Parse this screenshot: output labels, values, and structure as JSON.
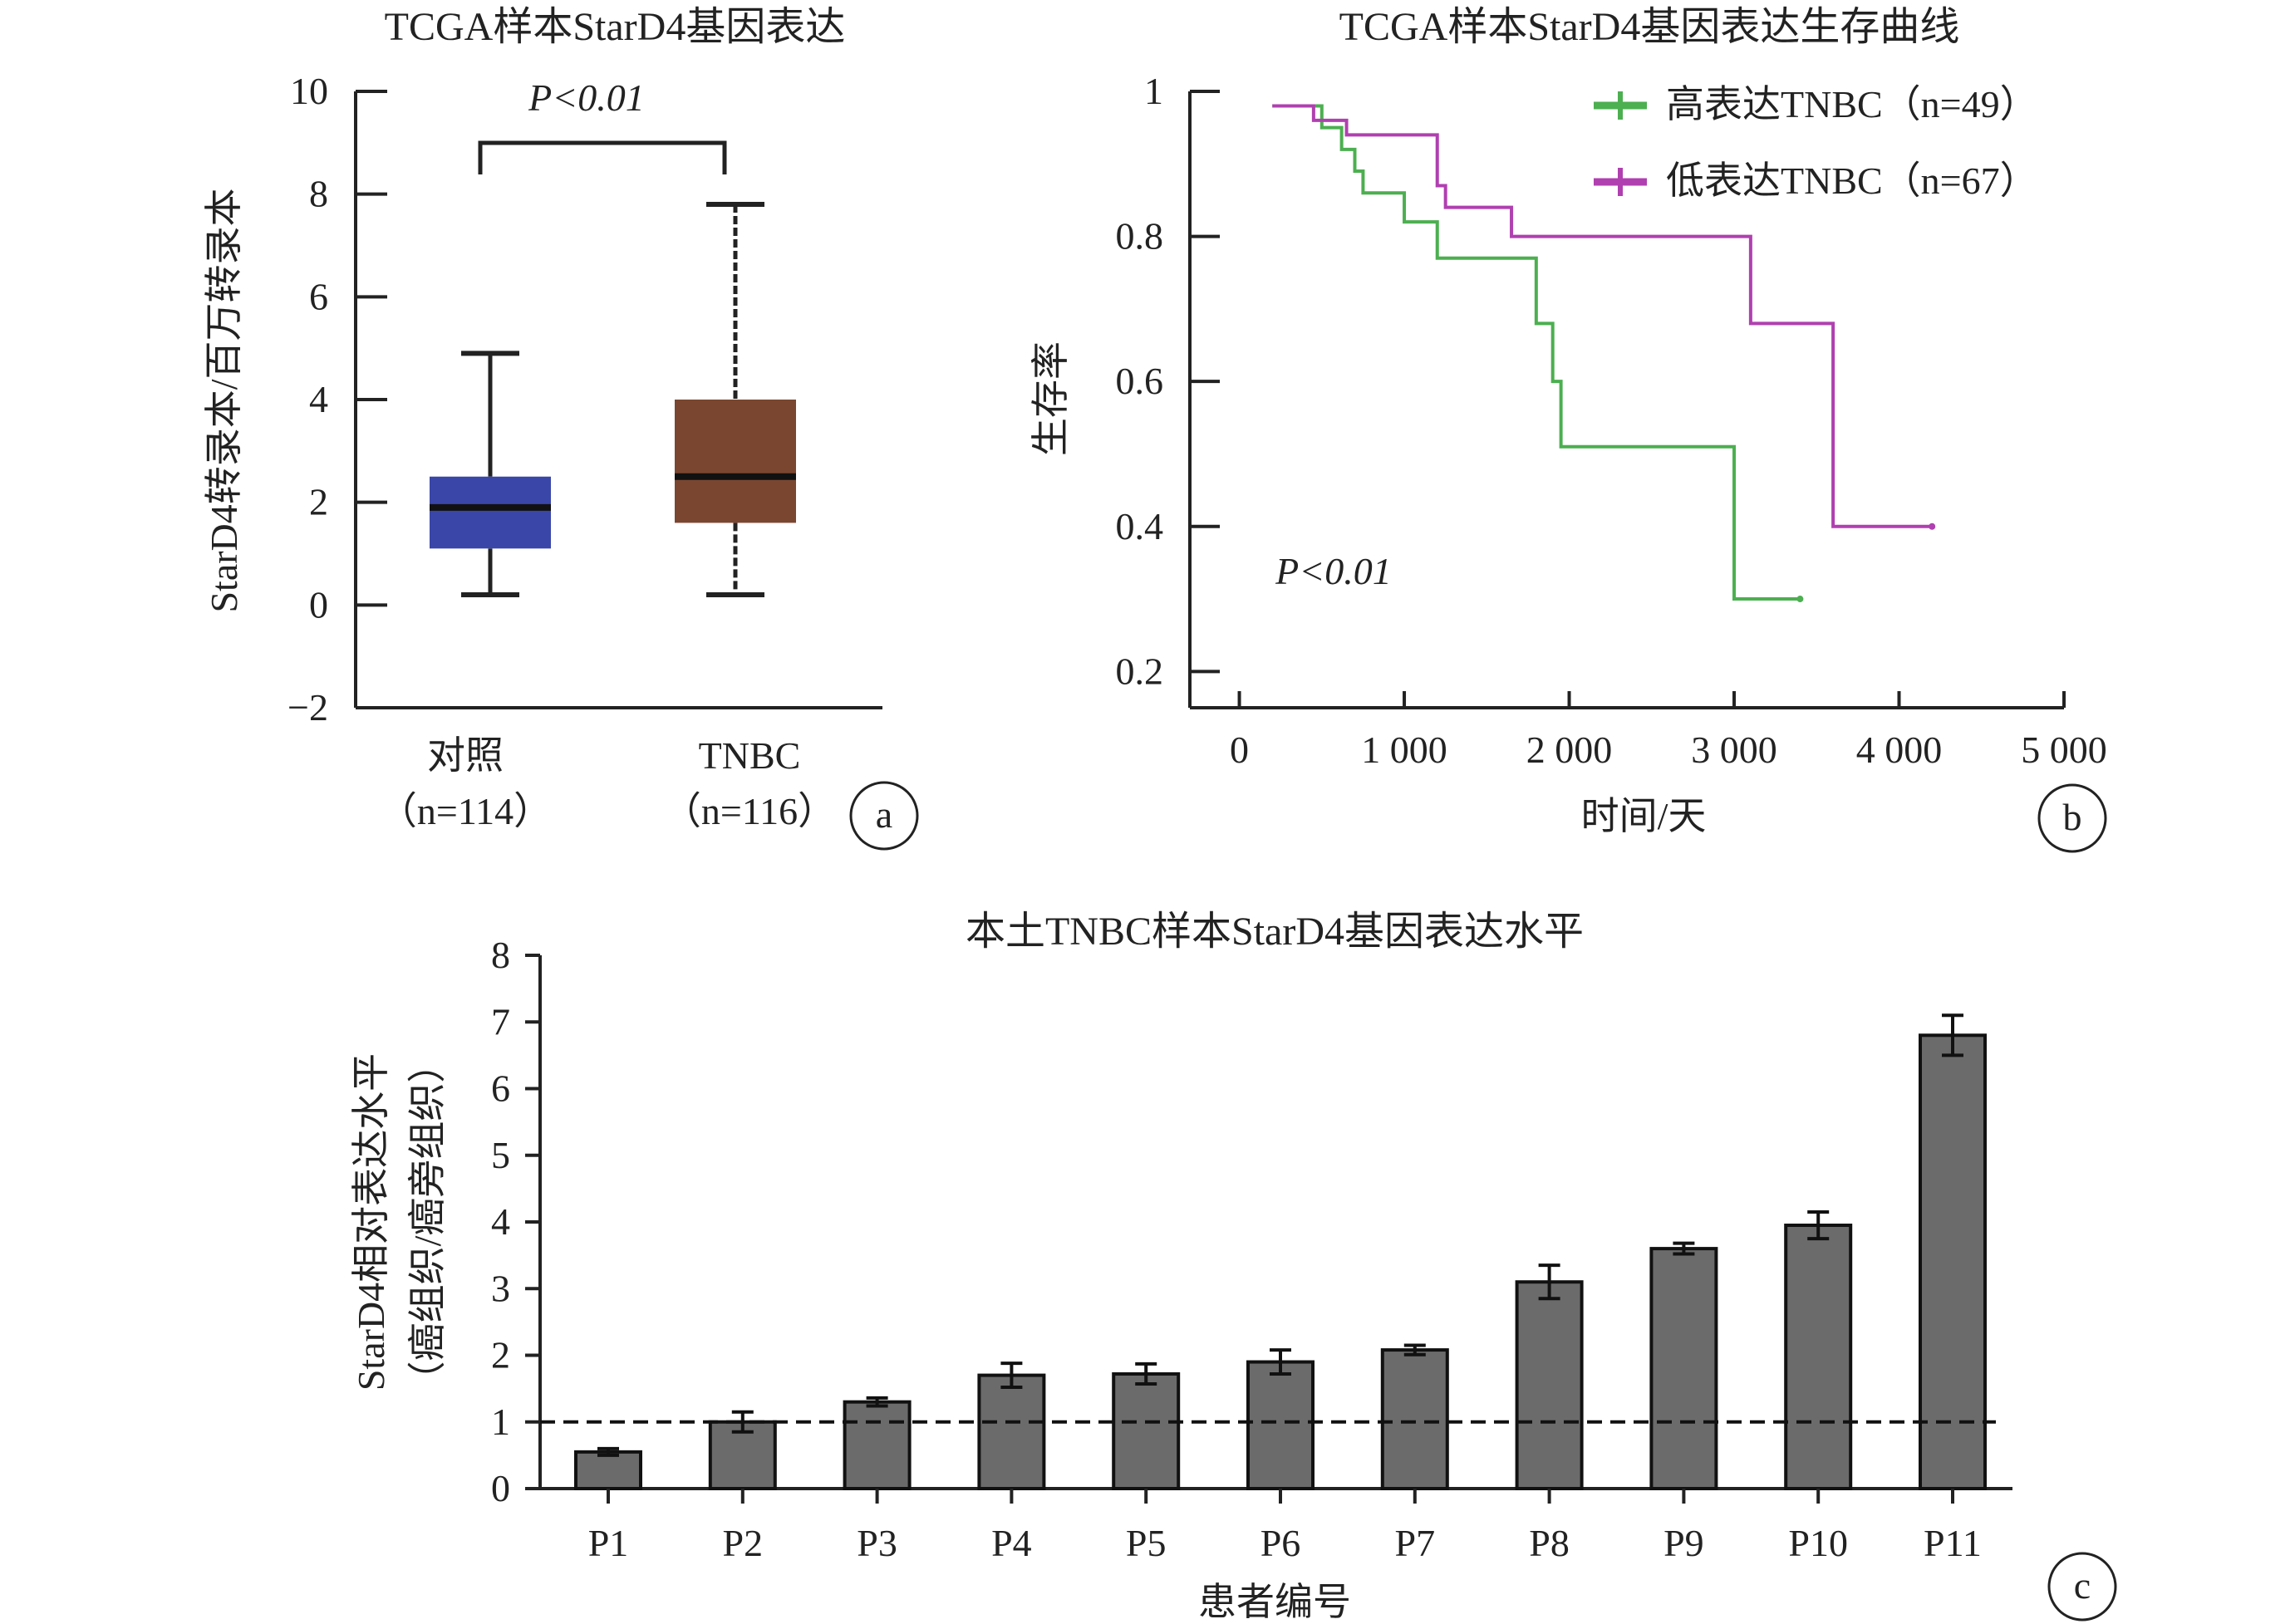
{
  "chart_data": [
    {
      "id": "a",
      "type": "box",
      "title": "TCGA样本StarD4基因表达",
      "ylabel": "StarD4转录本/百万转录本",
      "ylim": [
        -2,
        10
      ],
      "yticks": [
        "10",
        "8",
        "6",
        "4",
        "2",
        "0",
        "−2"
      ],
      "annotation": "P<0.01",
      "panel_label": "a",
      "groups": [
        {
          "name": "对照",
          "n_label": "（n=114）",
          "color": "#3a46a8",
          "min": 0.2,
          "q1": 1.1,
          "median": 1.9,
          "q3": 2.5,
          "max": 4.9
        },
        {
          "name": "TNBC",
          "n_label": "（n=116）",
          "color": "#7a4630",
          "min": 0.2,
          "q1": 1.6,
          "median": 2.5,
          "q3": 4.0,
          "max": 7.8
        }
      ]
    },
    {
      "id": "b",
      "type": "line",
      "title": "TCGA样本StarD4基因表达生存曲线",
      "ylabel": "生存率",
      "xlabel": "时间/天",
      "xlim": [
        -300,
        5000
      ],
      "ylim": [
        0.15,
        1.0
      ],
      "xticks": [
        "0",
        "1 000",
        "2 000",
        "3 000",
        "4 000",
        "5 000"
      ],
      "yticks": [
        "1",
        "0.8",
        "0.6",
        "0.4",
        "0.2"
      ],
      "annotation": "P<0.01",
      "panel_label": "b",
      "series": [
        {
          "name": "高表达TNBC（n=49）",
          "color": "#4caf50",
          "x": [
            200,
            420,
            500,
            620,
            700,
            750,
            900,
            1000,
            1200,
            1700,
            1800,
            1850,
            1900,
            1950,
            3000,
            3000,
            3400
          ],
          "y": [
            0.98,
            0.98,
            0.95,
            0.92,
            0.89,
            0.86,
            0.86,
            0.82,
            0.77,
            0.77,
            0.68,
            0.68,
            0.6,
            0.51,
            0.51,
            0.3,
            0.3
          ]
        },
        {
          "name": "低表达TNBC（n=67）",
          "color": "#b040b0",
          "x": [
            200,
            450,
            650,
            1050,
            1200,
            1250,
            1650,
            3100,
            3100,
            3600,
            3600,
            4200
          ],
          "y": [
            0.98,
            0.96,
            0.94,
            0.94,
            0.87,
            0.84,
            0.8,
            0.8,
            0.68,
            0.68,
            0.4,
            0.4
          ]
        }
      ]
    },
    {
      "id": "c",
      "type": "bar",
      "title": "本土TNBC样本StarD4基因表达水平",
      "ylabel": "StarD4相对表达水平",
      "ylabel2": "（癌组织/癌旁组织）",
      "xlabel": "患者编号",
      "ylim": [
        0,
        8
      ],
      "yticks": [
        "8",
        "7",
        "6",
        "5",
        "4",
        "3",
        "2",
        "1",
        "0"
      ],
      "panel_label": "c",
      "reference_line": 1,
      "categories": [
        "P1",
        "P2",
        "P3",
        "P4",
        "P5",
        "P6",
        "P7",
        "P8",
        "P9",
        "P10",
        "P11"
      ],
      "values": [
        0.55,
        1.0,
        1.3,
        1.7,
        1.72,
        1.9,
        2.08,
        3.1,
        3.6,
        3.95,
        6.8
      ],
      "errors": [
        0.05,
        0.15,
        0.06,
        0.18,
        0.15,
        0.18,
        0.07,
        0.25,
        0.08,
        0.2,
        0.3
      ],
      "color": "#6b6b6b"
    }
  ]
}
